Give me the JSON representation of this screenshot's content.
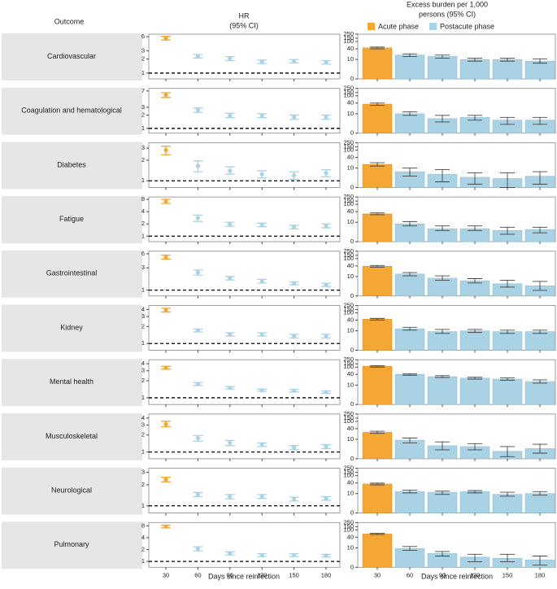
{
  "chart_data": {
    "type": "forest-bar",
    "outcome_header": "Outcome",
    "hr_title": [
      "HR",
      "(95% CI)"
    ],
    "burden_title": [
      "Excess burden per 1,000",
      "persons (95% CI)"
    ],
    "xlabel": "Days since reinfection",
    "categories": [
      30,
      60,
      90,
      120,
      150,
      180
    ],
    "series": [
      {
        "name": "Acute phase",
        "color": "#f5a733"
      },
      {
        "name": "Postacute phase",
        "color": "#a9d3e5"
      }
    ],
    "hr_scale": "log",
    "hr_reference_line": 1,
    "burden_scale": "log1p",
    "burden_ylim": [
      0,
      250
    ],
    "burden_yticks": [
      0,
      10,
      40,
      100,
      150,
      250
    ],
    "rows": [
      {
        "outcome": "Cardiovascular",
        "hr": {
          "ylim": [
            0.75,
            6.8
          ],
          "yticks": [
            1,
            2,
            3,
            6
          ],
          "values": [
            5.6,
            2.3,
            2.05,
            1.75,
            1.8,
            1.7
          ],
          "lower": [
            5.1,
            2.1,
            1.85,
            1.6,
            1.65,
            1.55
          ],
          "upper": [
            6.1,
            2.5,
            2.25,
            1.9,
            1.95,
            1.85
          ]
        },
        "burden": {
          "values": [
            45,
            18,
            15,
            10,
            10,
            8
          ],
          "lower": [
            40,
            15,
            12,
            8,
            8,
            6
          ],
          "upper": [
            50,
            21,
            18,
            12,
            12,
            11
          ]
        }
      },
      {
        "outcome": "Coagulation and hematological",
        "hr": {
          "ylim": [
            0.78,
            8
          ],
          "yticks": [
            1,
            2,
            3,
            7
          ],
          "values": [
            5.7,
            2.6,
            1.95,
            1.95,
            1.8,
            1.8
          ],
          "lower": [
            5.0,
            2.3,
            1.75,
            1.75,
            1.6,
            1.6
          ],
          "upper": [
            6.4,
            2.9,
            2.2,
            2.15,
            2.0,
            2.0
          ]
        },
        "burden": {
          "values": [
            35,
            10,
            5,
            6,
            4,
            4
          ],
          "lower": [
            30,
            8,
            3,
            4,
            2,
            2
          ],
          "upper": [
            40,
            13,
            8,
            8,
            6,
            6
          ]
        }
      },
      {
        "outcome": "Diabetes",
        "hr": {
          "ylim": [
            0.8,
            3.6
          ],
          "yticks": [
            1,
            2,
            3
          ],
          "values": [
            2.8,
            1.65,
            1.4,
            1.25,
            1.2,
            1.3
          ],
          "lower": [
            2.4,
            1.35,
            1.25,
            1.1,
            1.05,
            1.15
          ],
          "upper": [
            3.2,
            1.95,
            1.6,
            1.4,
            1.35,
            1.45
          ]
        },
        "burden": {
          "values": [
            16,
            6,
            4,
            2.5,
            2,
            3
          ],
          "lower": [
            13,
            3,
            1,
            0.5,
            0,
            0.5
          ],
          "upper": [
            20,
            10,
            8,
            5,
            5,
            6
          ]
        }
      },
      {
        "outcome": "Fatigue",
        "hr": {
          "ylim": [
            0.73,
            9.2
          ],
          "yticks": [
            1,
            2,
            4,
            8
          ],
          "values": [
            7.2,
            2.8,
            1.95,
            1.9,
            1.65,
            1.8
          ],
          "lower": [
            6.4,
            2.3,
            1.75,
            1.7,
            1.5,
            1.6
          ],
          "upper": [
            8.1,
            3.3,
            2.2,
            2.1,
            1.85,
            2.0
          ]
        },
        "burden": {
          "values": [
            30,
            8,
            4,
            4,
            3,
            3.5
          ],
          "lower": [
            27,
            6,
            3,
            3,
            1.5,
            2
          ],
          "upper": [
            34,
            11,
            6,
            6,
            5,
            5
          ]
        }
      },
      {
        "outcome": "Gastrointestinal",
        "hr": {
          "ylim": [
            0.75,
            6.8
          ],
          "yticks": [
            1,
            3,
            6
          ],
          "values": [
            5.1,
            2.4,
            1.8,
            1.55,
            1.4,
            1.3
          ],
          "lower": [
            4.6,
            2.1,
            1.65,
            1.42,
            1.3,
            1.2
          ],
          "upper": [
            5.6,
            2.7,
            1.95,
            1.7,
            1.5,
            1.4
          ]
        },
        "burden": {
          "values": [
            38,
            14,
            8,
            5.5,
            3.5,
            2.5
          ],
          "lower": [
            34,
            11,
            6,
            4,
            2,
            1
          ],
          "upper": [
            42,
            17,
            11,
            7.5,
            6,
            5
          ]
        }
      },
      {
        "outcome": "Kidney",
        "hr": {
          "ylim": [
            0.76,
            4.7
          ],
          "yticks": [
            1,
            2,
            3,
            4
          ],
          "values": [
            3.9,
            1.7,
            1.45,
            1.45,
            1.35,
            1.35
          ],
          "lower": [
            3.6,
            1.6,
            1.35,
            1.35,
            1.25,
            1.25
          ],
          "upper": [
            4.2,
            1.8,
            1.55,
            1.55,
            1.45,
            1.45
          ]
        },
        "burden": {
          "values": [
            45,
            13,
            9,
            10,
            9,
            9
          ],
          "lower": [
            40,
            11,
            7,
            8,
            7,
            7
          ],
          "upper": [
            50,
            16,
            12,
            12,
            11,
            11
          ]
        }
      },
      {
        "outcome": "Mental health",
        "hr": {
          "ylim": [
            0.76,
            4.7
          ],
          "yticks": [
            1,
            2,
            3,
            4
          ],
          "values": [
            3.4,
            1.75,
            1.5,
            1.35,
            1.33,
            1.25
          ],
          "lower": [
            3.2,
            1.65,
            1.43,
            1.3,
            1.27,
            1.2
          ],
          "upper": [
            3.6,
            1.85,
            1.57,
            1.42,
            1.4,
            1.32
          ]
        },
        "burden": {
          "values": [
            110,
            40,
            30,
            25,
            22,
            16
          ],
          "lower": [
            100,
            36,
            27,
            22,
            19,
            13
          ],
          "upper": [
            120,
            44,
            34,
            28,
            26,
            20
          ]
        }
      },
      {
        "outcome": "Musculoskeletal",
        "hr": {
          "ylim": [
            0.76,
            4.7
          ],
          "yticks": [
            1,
            2,
            3,
            4
          ],
          "values": [
            3.1,
            1.75,
            1.45,
            1.35,
            1.2,
            1.25
          ],
          "lower": [
            2.8,
            1.55,
            1.3,
            1.25,
            1.1,
            1.15
          ],
          "upper": [
            3.5,
            1.95,
            1.6,
            1.45,
            1.3,
            1.35
          ]
        },
        "burden": {
          "values": [
            25,
            9,
            4,
            3.5,
            1.5,
            2.5
          ],
          "lower": [
            22,
            6,
            2,
            2,
            0.3,
            1
          ],
          "upper": [
            29,
            12,
            7,
            5.5,
            3.5,
            5
          ]
        }
      },
      {
        "outcome": "Neurological",
        "hr": {
          "ylim": [
            0.79,
            3.43
          ],
          "yticks": [
            1,
            2,
            3
          ],
          "values": [
            2.35,
            1.45,
            1.35,
            1.35,
            1.25,
            1.27
          ],
          "lower": [
            2.2,
            1.35,
            1.25,
            1.27,
            1.17,
            1.2
          ],
          "upper": [
            2.55,
            1.55,
            1.45,
            1.45,
            1.33,
            1.35
          ]
        },
        "burden": {
          "values": [
            35,
            13,
            12,
            13,
            9,
            10
          ],
          "lower": [
            31,
            11,
            9,
            11,
            7,
            8
          ],
          "upper": [
            39,
            16,
            14,
            15,
            12,
            13
          ]
        }
      },
      {
        "outcome": "Pulmonary",
        "hr": {
          "ylim": [
            0.71,
            9.7
          ],
          "yticks": [
            1,
            2,
            4,
            8
          ],
          "values": [
            7.7,
            2.1,
            1.6,
            1.45,
            1.45,
            1.4
          ],
          "lower": [
            7.1,
            1.85,
            1.45,
            1.33,
            1.33,
            1.3
          ],
          "upper": [
            8.3,
            2.35,
            1.75,
            1.57,
            1.57,
            1.5
          ]
        },
        "burden": {
          "values": [
            60,
            9,
            4.5,
            2.5,
            2,
            1.5
          ],
          "lower": [
            56,
            7,
            3,
            1,
            1,
            0.3
          ],
          "upper": [
            65,
            12,
            6,
            4,
            4,
            3
          ]
        }
      }
    ]
  }
}
